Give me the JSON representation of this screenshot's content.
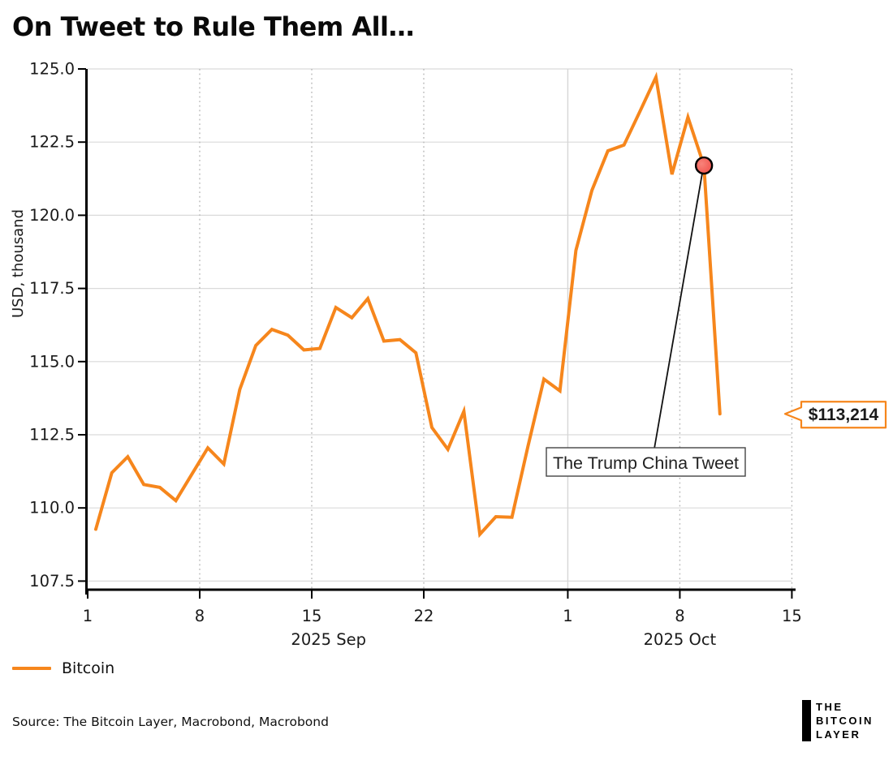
{
  "page": {
    "title": "On Tweet to Rule Them All…"
  },
  "legend": {
    "items": [
      {
        "label": "Bitcoin",
        "color": "#F6861C"
      }
    ]
  },
  "footer": {
    "source": "Source: The Bitcoin Layer, Macrobond, Macrobond",
    "logo_lines": [
      "THE",
      "BITCOIN",
      "LAYER"
    ]
  },
  "chart_data": {
    "type": "line",
    "title": "On Tweet to Rule Them All…",
    "xlabel": "",
    "ylabel": "USD, thousand",
    "ylim": [
      107.2,
      125.6
    ],
    "grid": true,
    "legend_position": "bottom-left",
    "y_ticks": [
      107.5,
      110.0,
      112.5,
      115.0,
      117.5,
      120.0,
      122.5,
      125.0
    ],
    "x_ticks": [
      {
        "i": 0,
        "label": "1",
        "grid": "none"
      },
      {
        "i": 7,
        "label": "8",
        "grid": "dotted"
      },
      {
        "i": 14,
        "label": "15",
        "grid": "dotted"
      },
      {
        "i": 21,
        "label": "22",
        "grid": "dotted"
      },
      {
        "i": 30,
        "label": "1",
        "grid": "solid"
      },
      {
        "i": 37,
        "label": "8",
        "grid": "dotted"
      },
      {
        "i": 44,
        "label": "15",
        "grid": "dotted"
      }
    ],
    "month_labels": [
      {
        "label": "2025 Sep",
        "center_i": 15.05
      },
      {
        "label": "2025 Oct",
        "center_i": 37.0
      }
    ],
    "series": [
      {
        "name": "Bitcoin",
        "color": "#F6861C",
        "points": [
          {
            "date": "2025-09-01",
            "v": 109.27
          },
          {
            "date": "2025-09-02",
            "v": 111.2
          },
          {
            "date": "2025-09-03",
            "v": 111.75
          },
          {
            "date": "2025-09-04",
            "v": 110.8
          },
          {
            "date": "2025-09-05",
            "v": 110.7
          },
          {
            "date": "2025-09-06",
            "v": 110.25
          },
          {
            "date": "2025-09-07",
            "v": 111.15
          },
          {
            "date": "2025-09-08",
            "v": 112.05
          },
          {
            "date": "2025-09-09",
            "v": 111.5
          },
          {
            "date": "2025-09-10",
            "v": 114.05
          },
          {
            "date": "2025-09-11",
            "v": 115.55
          },
          {
            "date": "2025-09-12",
            "v": 116.1
          },
          {
            "date": "2025-09-13",
            "v": 115.9
          },
          {
            "date": "2025-09-14",
            "v": 115.4
          },
          {
            "date": "2025-09-15",
            "v": 115.45
          },
          {
            "date": "2025-09-16",
            "v": 116.85
          },
          {
            "date": "2025-09-17",
            "v": 116.5
          },
          {
            "date": "2025-09-18",
            "v": 117.15
          },
          {
            "date": "2025-09-19",
            "v": 115.7
          },
          {
            "date": "2025-09-20",
            "v": 115.75
          },
          {
            "date": "2025-09-21",
            "v": 115.3
          },
          {
            "date": "2025-09-22",
            "v": 112.75
          },
          {
            "date": "2025-09-23",
            "v": 112.0
          },
          {
            "date": "2025-09-24",
            "v": 113.3
          },
          {
            "date": "2025-09-25",
            "v": 109.1
          },
          {
            "date": "2025-09-26",
            "v": 109.7
          },
          {
            "date": "2025-09-27",
            "v": 109.68
          },
          {
            "date": "2025-09-28",
            "v": 112.1
          },
          {
            "date": "2025-09-29",
            "v": 114.4
          },
          {
            "date": "2025-09-30",
            "v": 114.0
          },
          {
            "date": "2025-10-01",
            "v": 118.8
          },
          {
            "date": "2025-10-02",
            "v": 120.85
          },
          {
            "date": "2025-10-03",
            "v": 122.2
          },
          {
            "date": "2025-10-04",
            "v": 122.4
          },
          {
            "date": "2025-10-05",
            "v": 123.55
          },
          {
            "date": "2025-10-06",
            "v": 124.72
          },
          {
            "date": "2025-10-07",
            "v": 121.4
          },
          {
            "date": "2025-10-08",
            "v": 123.35
          },
          {
            "date": "2025-10-09",
            "v": 121.7
          },
          {
            "date": "2025-10-10",
            "v": 113.214
          }
        ]
      }
    ],
    "annotation": {
      "text": "The Trump China Tweet",
      "target_index": 38,
      "target_date": "2025-10-09",
      "target_value": 121.7,
      "marker_color": "#EF4B45"
    },
    "last_value_callout": {
      "text": "$113,214",
      "value": 113.214
    },
    "colors": {
      "line": "#F6861C",
      "marker_fill": "#EF4B45",
      "marker_stroke": "#000000",
      "h_grid": "#dadada",
      "v_grid_solid": "#d6d6d6",
      "v_grid_dotted": "#b8b8b8",
      "axis": "#000000",
      "callout": "#F6861C"
    }
  }
}
